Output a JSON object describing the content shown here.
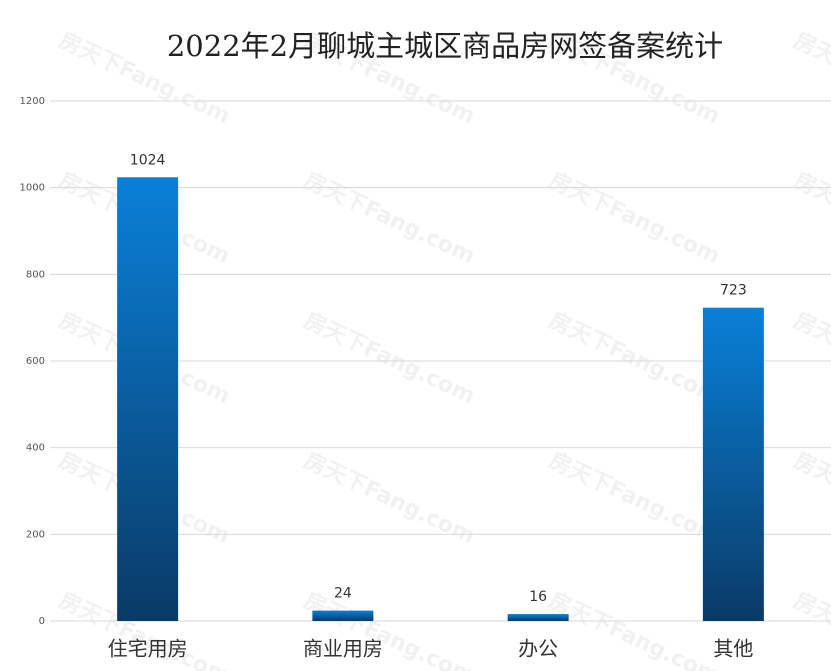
{
  "chart_data": {
    "type": "bar",
    "title": "2022年2月聊城主城区商品房网签备案统计",
    "categories": [
      "住宅用房",
      "商业用房",
      "办公",
      "其他"
    ],
    "values": [
      1024,
      24,
      16,
      723
    ],
    "color": "#0a80d8",
    "ylim": [
      0,
      1200
    ],
    "yticks": [
      0,
      200,
      400,
      600,
      800,
      1000,
      1200
    ],
    "grid": true,
    "watermark": "房天下Fang.com"
  }
}
